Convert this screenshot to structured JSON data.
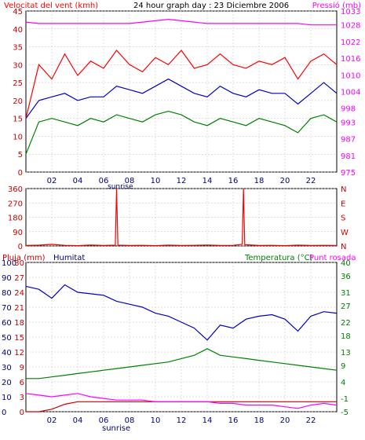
{
  "header": {
    "wind_label": "Velocitat del vent (kmh)",
    "title": "24 hour graph day : 23 Diciembre 2006",
    "pressure_label": "Pressió (mb)"
  },
  "colors": {
    "wind_speed": "#ff0000",
    "wind_gust": "#cc0000",
    "wind_avg": "#008000",
    "pressure": "#ff00ff",
    "axis_blue": "#000080",
    "rain": "#cc0000",
    "humidity": "#0000cc",
    "temperature": "#008000",
    "dewpoint": "#ff00ff",
    "grid": "#c0c0c0",
    "frame": "#000000"
  },
  "x_ticks": [
    "02",
    "04",
    "06",
    "08",
    "10",
    "12",
    "14",
    "16",
    "18",
    "20",
    "22"
  ],
  "sunrise_label": "sunrise",
  "chart_data": [
    {
      "type": "line",
      "name": "wind-pressure",
      "y_left": {
        "label": "Velocitat del vent (kmh)",
        "ticks": [
          0,
          5,
          10,
          15,
          20,
          25,
          30,
          35,
          40,
          45
        ],
        "range": [
          0,
          45
        ]
      },
      "y_right": {
        "label": "Pressió (mb)",
        "ticks": [
          975,
          981,
          987,
          993,
          998,
          1004,
          1010,
          1016,
          1022,
          1028,
          1033
        ],
        "range": [
          975,
          1033
        ]
      },
      "x": [
        0,
        1,
        2,
        3,
        4,
        5,
        6,
        7,
        8,
        9,
        10,
        11,
        12,
        13,
        14,
        15,
        16,
        17,
        18,
        19,
        20,
        21,
        22,
        23,
        24
      ],
      "series": [
        {
          "name": "Velocitat del vent (kmh)",
          "color": "#ff0000",
          "values": [
            15,
            30,
            26,
            33,
            27,
            31,
            29,
            34,
            30,
            28,
            32,
            30,
            34,
            29,
            30,
            33,
            30,
            29,
            31,
            30,
            32,
            26,
            31,
            33,
            30
          ]
        },
        {
          "color": "#0000cc",
          "values": [
            15,
            20,
            21,
            22,
            20,
            21,
            21,
            24,
            23,
            22,
            24,
            26,
            24,
            22,
            21,
            24,
            22,
            21,
            23,
            22,
            22,
            19,
            22,
            25,
            22
          ]
        },
        {
          "color": "#008000",
          "values": [
            5,
            14,
            15,
            14,
            13,
            15,
            14,
            16,
            15,
            14,
            16,
            17,
            16,
            14,
            13,
            15,
            14,
            13,
            15,
            14,
            13,
            11,
            15,
            16,
            14
          ]
        },
        {
          "name": "Pressió (mb)",
          "color": "#ff00ff",
          "axis": "right",
          "values": [
            1029,
            1028.5,
            1028.5,
            1028.5,
            1028.5,
            1028.5,
            1028.5,
            1028.5,
            1028.5,
            1029,
            1029.5,
            1030,
            1029.5,
            1029,
            1028.5,
            1028.5,
            1028.5,
            1028.5,
            1028.5,
            1028.5,
            1028.5,
            1028.5,
            1028,
            1028,
            1028
          ]
        }
      ]
    },
    {
      "type": "line",
      "name": "wind-direction",
      "y_left": {
        "ticks": [
          0,
          90,
          180,
          270,
          360
        ],
        "range": [
          0,
          360
        ]
      },
      "y_right": {
        "ticks": [
          "N",
          "W",
          "S",
          "E",
          "N"
        ]
      },
      "x": [
        0,
        1,
        2,
        3,
        4,
        5,
        6,
        6.9,
        7,
        7.1,
        8,
        9,
        10,
        11,
        12,
        13,
        14,
        15,
        16,
        16.7,
        16.8,
        16.9,
        18,
        19,
        20,
        21,
        22,
        23,
        24
      ],
      "series": [
        {
          "color": "#ff0000",
          "values": [
            3,
            5,
            10,
            4,
            2,
            6,
            3,
            5,
            360,
            5,
            3,
            4,
            2,
            5,
            3,
            4,
            6,
            3,
            4,
            10,
            360,
            8,
            3,
            4,
            2,
            5,
            3,
            4,
            3
          ]
        }
      ]
    },
    {
      "type": "line",
      "name": "rain-humidity-temperature",
      "y_left_rain": {
        "label": "Pluja (mm)",
        "ticks": [
          0,
          3,
          6,
          9,
          12,
          15,
          18,
          21,
          24,
          27,
          30
        ],
        "range": [
          0,
          30
        ]
      },
      "y_left_humidity": {
        "label": "Humitat",
        "ticks": [
          0,
          10,
          20,
          30,
          40,
          50,
          60,
          70,
          80,
          90,
          100
        ],
        "range": [
          0,
          100
        ]
      },
      "y_right": {
        "label": "Temperatura (°C)",
        "label2": "Punt rosada",
        "ticks": [
          -5,
          -1,
          4,
          9,
          13,
          18,
          22,
          27,
          31,
          36,
          40
        ],
        "range": [
          -5,
          40
        ]
      },
      "x": [
        0,
        1,
        2,
        3,
        4,
        5,
        6,
        7,
        8,
        9,
        10,
        11,
        12,
        13,
        14,
        15,
        16,
        17,
        18,
        19,
        20,
        21,
        22,
        23,
        24
      ],
      "series": [
        {
          "name": "Pluja (mm)",
          "color": "#cc0000",
          "values": [
            0,
            0,
            0.5,
            1.5,
            2,
            2,
            2,
            2,
            2,
            2,
            2,
            2,
            2,
            2,
            2,
            2,
            2,
            2,
            2,
            2,
            2,
            2,
            2,
            2,
            2
          ]
        },
        {
          "name": "Humitat",
          "color": "#0000cc",
          "values": [
            84,
            82,
            76,
            85,
            80,
            79,
            78,
            74,
            72,
            70,
            66,
            64,
            60,
            56,
            48,
            58,
            56,
            62,
            64,
            65,
            62,
            54,
            64,
            67,
            66
          ]
        },
        {
          "name": "Temperatura (°C)",
          "color": "#008000",
          "axis": "right",
          "values": [
            5,
            5,
            5.5,
            6,
            6.5,
            7,
            7.5,
            8,
            8.5,
            9,
            9.5,
            10,
            11,
            12,
            14,
            12,
            11.5,
            11,
            10.5,
            10,
            9.5,
            9,
            8.5,
            8,
            7.5
          ]
        },
        {
          "name": "Punt rosada",
          "color": "#ff00ff",
          "axis": "right",
          "values": [
            0.5,
            0,
            -0.5,
            0,
            0.5,
            -0.5,
            -1,
            -1.5,
            -1.5,
            -1.5,
            -2,
            -2,
            -2,
            -2,
            -2,
            -2.5,
            -2.5,
            -3,
            -3,
            -3,
            -3.5,
            -4,
            -3,
            -2.5,
            -3
          ]
        }
      ]
    }
  ]
}
